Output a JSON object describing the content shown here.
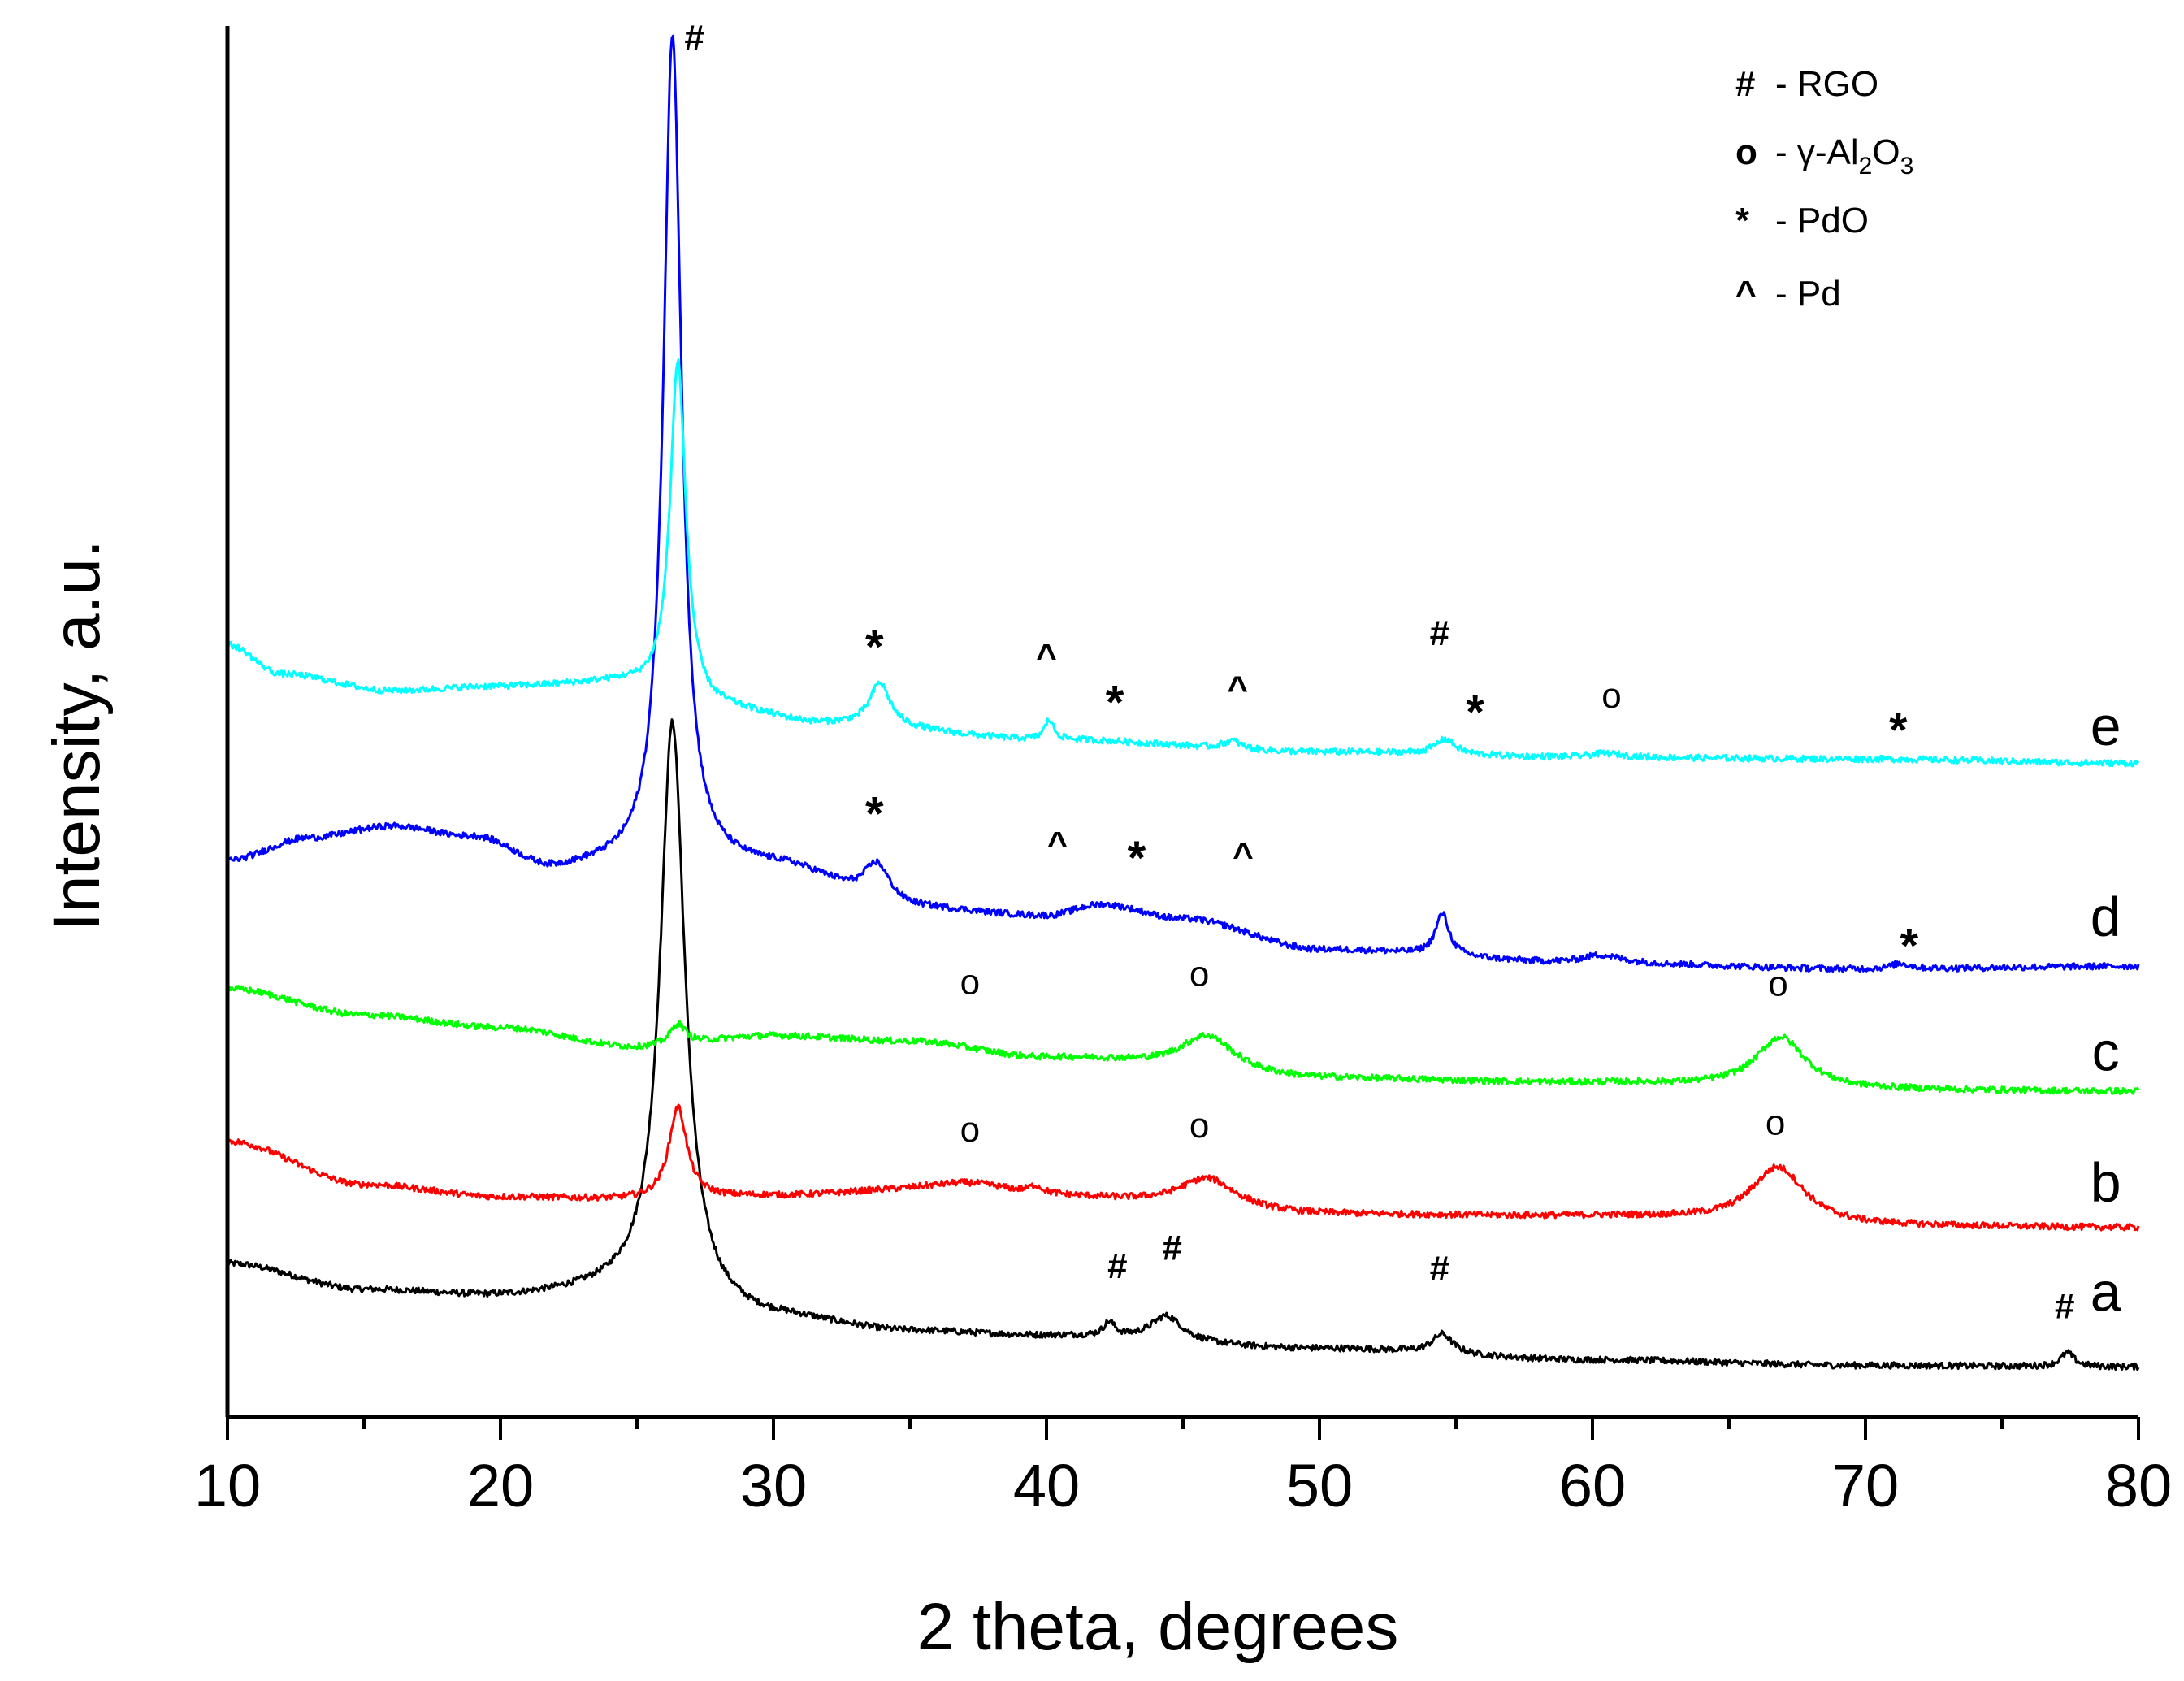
{
  "chart_data": {
    "type": "line",
    "title": "",
    "xlabel": "2 theta, degrees",
    "ylabel": "Intensity, a.u.",
    "xlim": [
      10,
      80
    ],
    "xticks": [
      "10",
      "20",
      "30",
      "40",
      "50",
      "60",
      "70",
      "80"
    ],
    "ylim": [
      0,
      100
    ],
    "y_ticks_shown": false,
    "grid": false,
    "legend": {
      "placement": "top-right",
      "entries": [
        {
          "symbol": "#",
          "label": "- RGO"
        },
        {
          "symbol": "o",
          "label": "- γ-Al₂O₃",
          "parts": [
            "- γ-Al",
            "2",
            "O",
            "3"
          ]
        },
        {
          "symbol": "*",
          "label": "- PdO"
        },
        {
          "symbol": "^",
          "label": "- Pd"
        }
      ]
    },
    "series": [
      {
        "name": "a",
        "color": "#000000",
        "baseline": [
          [
            10,
            11.0
          ],
          [
            15,
            9.1
          ],
          [
            20,
            8.6
          ],
          [
            24,
            8.9
          ],
          [
            30,
            7.0
          ],
          [
            35,
            6.1
          ],
          [
            40,
            5.8
          ],
          [
            50,
            4.9
          ],
          [
            60,
            4.1
          ],
          [
            70,
            3.7
          ],
          [
            80,
            3.6
          ]
        ],
        "peaks": [
          {
            "x": 26.3,
            "h": 41.7,
            "w": 0.55
          },
          {
            "x": 42.3,
            "h": 1.0,
            "w": 0.25
          },
          {
            "x": 44.4,
            "h": 1.8,
            "w": 0.7
          },
          {
            "x": 54.5,
            "h": 1.4,
            "w": 0.45
          },
          {
            "x": 77.4,
            "h": 1.0,
            "w": 0.3
          }
        ]
      },
      {
        "name": "b",
        "color": "#ff0000",
        "baseline": [
          [
            10,
            19.8
          ],
          [
            15,
            16.7
          ],
          [
            20,
            15.8
          ],
          [
            25,
            15.6
          ],
          [
            30,
            15.8
          ],
          [
            34,
            16.0
          ],
          [
            40,
            15.6
          ],
          [
            50,
            14.5
          ],
          [
            60,
            14.4
          ],
          [
            70,
            13.7
          ],
          [
            80,
            13.6
          ]
        ],
        "peaks": [
          {
            "x": 26.5,
            "h": 6.6,
            "w": 0.4
          },
          {
            "x": 37.2,
            "h": 1.0,
            "w": 2.2
          },
          {
            "x": 39.6,
            "h": 0.5,
            "w": 0.3
          },
          {
            "x": 45.9,
            "h": 2.2,
            "w": 1.3
          },
          {
            "x": 66.8,
            "h": 4.1,
            "w": 1.2
          }
        ]
      },
      {
        "name": "c",
        "color": "#00ff00",
        "baseline": [
          [
            10,
            30.8
          ],
          [
            15,
            28.9
          ],
          [
            20,
            28.0
          ],
          [
            25,
            26.6
          ],
          [
            30,
            27.4
          ],
          [
            35,
            27.0
          ],
          [
            40,
            25.8
          ],
          [
            50,
            24.3
          ],
          [
            60,
            24.0
          ],
          [
            70,
            23.5
          ],
          [
            80,
            23.4
          ]
        ],
        "peaks": [
          {
            "x": 26.5,
            "h": 1.5,
            "w": 0.35
          },
          {
            "x": 45.9,
            "h": 2.6,
            "w": 1.2
          },
          {
            "x": 66.9,
            "h": 3.7,
            "w": 1.1
          }
        ]
      },
      {
        "name": "d",
        "color": "#0000ff",
        "baseline": [
          [
            10,
            40.0
          ],
          [
            13,
            41.6
          ],
          [
            16,
            42.4
          ],
          [
            19,
            41.6
          ],
          [
            22,
            39.3
          ],
          [
            24,
            39.5
          ],
          [
            30,
            39.5
          ],
          [
            35,
            36.5
          ],
          [
            40,
            36.0
          ],
          [
            42,
            36.8
          ],
          [
            45,
            35.8
          ],
          [
            50,
            33.6
          ],
          [
            60,
            32.6
          ],
          [
            70,
            32.2
          ],
          [
            80,
            32.4
          ]
        ],
        "peaks": [
          {
            "x": 26.3,
            "h": 60.0,
            "w": 0.4
          },
          {
            "x": 33.8,
            "h": 2.8,
            "w": 0.6
          },
          {
            "x": 54.5,
            "h": 3.0,
            "w": 0.3
          },
          {
            "x": 60.3,
            "h": 0.6,
            "w": 0.9
          },
          {
            "x": 71.3,
            "h": 0.4,
            "w": 0.4
          }
        ]
      },
      {
        "name": "e",
        "color": "#00ffff",
        "baseline": [
          [
            10,
            55.5
          ],
          [
            12,
            53.4
          ],
          [
            16,
            52.2
          ],
          [
            20,
            52.5
          ],
          [
            24,
            52.7
          ],
          [
            28,
            50.8
          ],
          [
            32,
            49.8
          ],
          [
            40,
            48.7
          ],
          [
            50,
            47.8
          ],
          [
            60,
            47.4
          ],
          [
            70,
            47.3
          ],
          [
            80,
            47.0
          ]
        ],
        "peaks": [
          {
            "x": 26.5,
            "h": 24.5,
            "w": 0.35
          },
          {
            "x": 33.9,
            "h": 3.1,
            "w": 0.45
          },
          {
            "x": 40.1,
            "h": 1.4,
            "w": 0.2
          },
          {
            "x": 46.8,
            "h": 0.6,
            "w": 0.4
          },
          {
            "x": 54.6,
            "h": 1.1,
            "w": 0.45
          },
          {
            "x": 60.5,
            "h": 0.3,
            "w": 0.8
          }
        ]
      }
    ],
    "curve_labels": [
      {
        "text": "e",
        "x": 78.8,
        "y": 49.6
      },
      {
        "text": "d",
        "x": 78.8,
        "y": 35.9
      },
      {
        "text": "c",
        "x": 78.8,
        "y": 26.2
      },
      {
        "text": "b",
        "x": 78.8,
        "y": 16.8
      },
      {
        "text": "a",
        "x": 78.8,
        "y": 8.9
      }
    ],
    "annotations": [
      {
        "text": "#",
        "x": 27.1,
        "y": 98.3
      },
      {
        "text": "*",
        "x": 33.7,
        "y": 55.5
      },
      {
        "text": "^",
        "x": 40.0,
        "y": 53.8
      },
      {
        "text": "*",
        "x": 42.5,
        "y": 51.5
      },
      {
        "text": "^",
        "x": 47.0,
        "y": 51.5
      },
      {
        "text": "#",
        "x": 54.4,
        "y": 55.5
      },
      {
        "text": "*",
        "x": 55.7,
        "y": 50.8
      },
      {
        "text": "o",
        "x": 60.7,
        "y": 51.0
      },
      {
        "text": "*",
        "x": 71.2,
        "y": 49.5
      },
      {
        "text": "*",
        "x": 33.7,
        "y": 43.5
      },
      {
        "text": "^",
        "x": 40.4,
        "y": 40.3
      },
      {
        "text": "*",
        "x": 43.3,
        "y": 40.3
      },
      {
        "text": "^",
        "x": 47.2,
        "y": 39.5
      },
      {
        "text": "*",
        "x": 71.6,
        "y": 34.0
      },
      {
        "text": "o",
        "x": 37.2,
        "y": 30.4
      },
      {
        "text": "o",
        "x": 45.6,
        "y": 31.0
      },
      {
        "text": "o",
        "x": 66.8,
        "y": 30.3
      },
      {
        "text": "o",
        "x": 37.2,
        "y": 19.8
      },
      {
        "text": "o",
        "x": 45.6,
        "y": 20.1
      },
      {
        "text": "o",
        "x": 66.7,
        "y": 20.3
      },
      {
        "text": "#",
        "x": 42.6,
        "y": 10.0
      },
      {
        "text": "#",
        "x": 44.6,
        "y": 11.3
      },
      {
        "text": "#",
        "x": 54.4,
        "y": 9.8
      },
      {
        "text": "#",
        "x": 77.3,
        "y": 7.1
      }
    ]
  }
}
